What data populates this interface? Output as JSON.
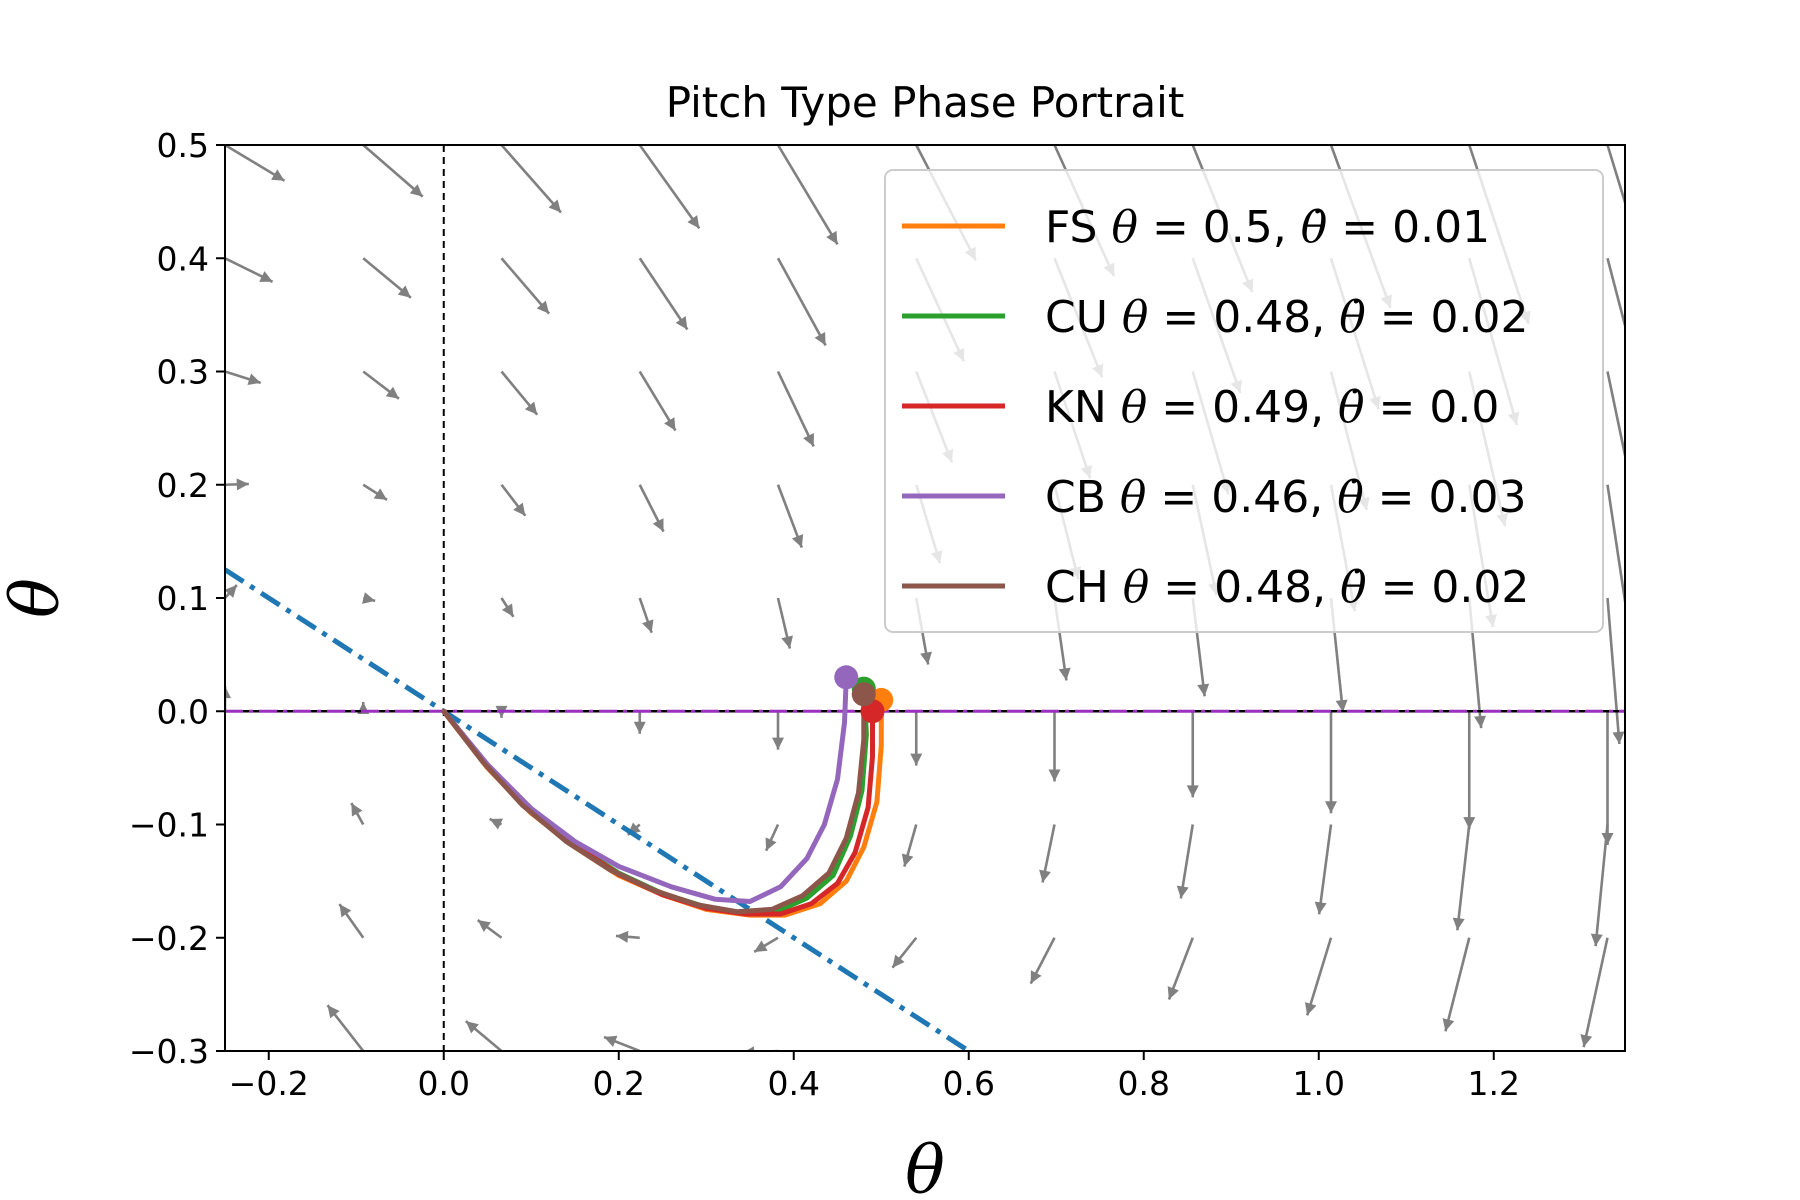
{
  "chart_data": {
    "type": "line",
    "title": "Pitch Type Phase Portrait",
    "xlabel": "θ",
    "ylabel": "θ",
    "xlim": [
      -0.25,
      1.35
    ],
    "ylim": [
      -0.3,
      0.5
    ],
    "x_ticks": [
      -0.2,
      0.0,
      0.2,
      0.4,
      0.6,
      0.8,
      1.0,
      1.2
    ],
    "x_tick_labels": [
      "−0.2",
      "0.0",
      "0.2",
      "0.4",
      "0.6",
      "0.8",
      "1.0",
      "1.2"
    ],
    "y_ticks": [
      -0.3,
      -0.2,
      -0.1,
      0.0,
      0.1,
      0.2,
      0.3,
      0.4,
      0.5
    ],
    "y_tick_labels": [
      "−0.3",
      "−0.2",
      "−0.1",
      "0.0",
      "0.1",
      "0.2",
      "0.3",
      "0.4",
      "0.5"
    ],
    "grid": false,
    "legend_position": "upper-right",
    "reference_lines": [
      {
        "kind": "dash-dot",
        "color": "#1f77b4",
        "points": [
          [
            -0.25,
            0.125
          ],
          [
            0.6,
            -0.3
          ]
        ]
      },
      {
        "kind": "horizontal-solid",
        "color": "#000000",
        "y": 0.0
      },
      {
        "kind": "horizontal-dash-dot",
        "color": "#9b30c0",
        "y": 0.0
      },
      {
        "kind": "vertical-dashed",
        "color": "#000000",
        "x": 0.0
      }
    ],
    "series": [
      {
        "legend_prefix": "FS",
        "legend_mid": " = 0.5, ",
        "legend_suffix": " = 0.01",
        "color": "#ff7f0e",
        "start": [
          0.5,
          0.01
        ],
        "points": [
          [
            0.5,
            0.01
          ],
          [
            0.5,
            -0.03
          ],
          [
            0.495,
            -0.08
          ],
          [
            0.48,
            -0.12
          ],
          [
            0.46,
            -0.15
          ],
          [
            0.43,
            -0.17
          ],
          [
            0.39,
            -0.18
          ],
          [
            0.35,
            -0.18
          ],
          [
            0.3,
            -0.175
          ],
          [
            0.25,
            -0.162
          ],
          [
            0.2,
            -0.145
          ],
          [
            0.15,
            -0.12
          ],
          [
            0.1,
            -0.09
          ],
          [
            0.05,
            -0.05
          ],
          [
            0.0,
            0.0
          ]
        ]
      },
      {
        "legend_prefix": "CU",
        "legend_mid": " = 0.48, ",
        "legend_suffix": " = 0.02",
        "color": "#2ca02c",
        "start": [
          0.48,
          0.02
        ],
        "points": [
          [
            0.48,
            0.02
          ],
          [
            0.483,
            -0.02
          ],
          [
            0.478,
            -0.07
          ],
          [
            0.465,
            -0.11
          ],
          [
            0.445,
            -0.145
          ],
          [
            0.415,
            -0.165
          ],
          [
            0.38,
            -0.177
          ],
          [
            0.34,
            -0.178
          ],
          [
            0.3,
            -0.173
          ],
          [
            0.25,
            -0.161
          ],
          [
            0.2,
            -0.143
          ],
          [
            0.15,
            -0.118
          ],
          [
            0.1,
            -0.088
          ],
          [
            0.05,
            -0.048
          ],
          [
            0.0,
            0.0
          ]
        ]
      },
      {
        "legend_prefix": "KN",
        "legend_mid": " = 0.49, ",
        "legend_suffix": " = 0.0",
        "color": "#d62728",
        "start": [
          0.49,
          0.0
        ],
        "points": [
          [
            0.49,
            0.0
          ],
          [
            0.49,
            -0.04
          ],
          [
            0.485,
            -0.085
          ],
          [
            0.47,
            -0.125
          ],
          [
            0.45,
            -0.152
          ],
          [
            0.42,
            -0.17
          ],
          [
            0.385,
            -0.179
          ],
          [
            0.345,
            -0.179
          ],
          [
            0.3,
            -0.174
          ],
          [
            0.25,
            -0.162
          ],
          [
            0.2,
            -0.144
          ],
          [
            0.15,
            -0.119
          ],
          [
            0.1,
            -0.089
          ],
          [
            0.05,
            -0.049
          ],
          [
            0.0,
            0.0
          ]
        ]
      },
      {
        "legend_prefix": "CB",
        "legend_mid": " = 0.46, ",
        "legend_suffix": " = 0.03",
        "color": "#9467bd",
        "start": [
          0.46,
          0.03
        ],
        "points": [
          [
            0.46,
            0.03
          ],
          [
            0.458,
            -0.01
          ],
          [
            0.45,
            -0.06
          ],
          [
            0.435,
            -0.1
          ],
          [
            0.415,
            -0.13
          ],
          [
            0.385,
            -0.155
          ],
          [
            0.35,
            -0.168
          ],
          [
            0.31,
            -0.166
          ],
          [
            0.26,
            -0.155
          ],
          [
            0.2,
            -0.137
          ],
          [
            0.15,
            -0.115
          ],
          [
            0.1,
            -0.086
          ],
          [
            0.05,
            -0.047
          ],
          [
            0.0,
            0.0
          ]
        ]
      },
      {
        "legend_prefix": "CH",
        "legend_mid": " = 0.48, ",
        "legend_suffix": " = 0.02",
        "color": "#8c564b",
        "start": [
          0.48,
          0.015
        ],
        "points": [
          [
            0.48,
            0.015
          ],
          [
            0.48,
            -0.025
          ],
          [
            0.474,
            -0.072
          ],
          [
            0.46,
            -0.112
          ],
          [
            0.44,
            -0.143
          ],
          [
            0.41,
            -0.163
          ],
          [
            0.375,
            -0.175
          ],
          [
            0.335,
            -0.177
          ],
          [
            0.29,
            -0.171
          ],
          [
            0.24,
            -0.158
          ],
          [
            0.19,
            -0.14
          ],
          [
            0.14,
            -0.115
          ],
          [
            0.09,
            -0.083
          ],
          [
            0.045,
            -0.045
          ],
          [
            0.0,
            0.0
          ]
        ]
      }
    ]
  }
}
